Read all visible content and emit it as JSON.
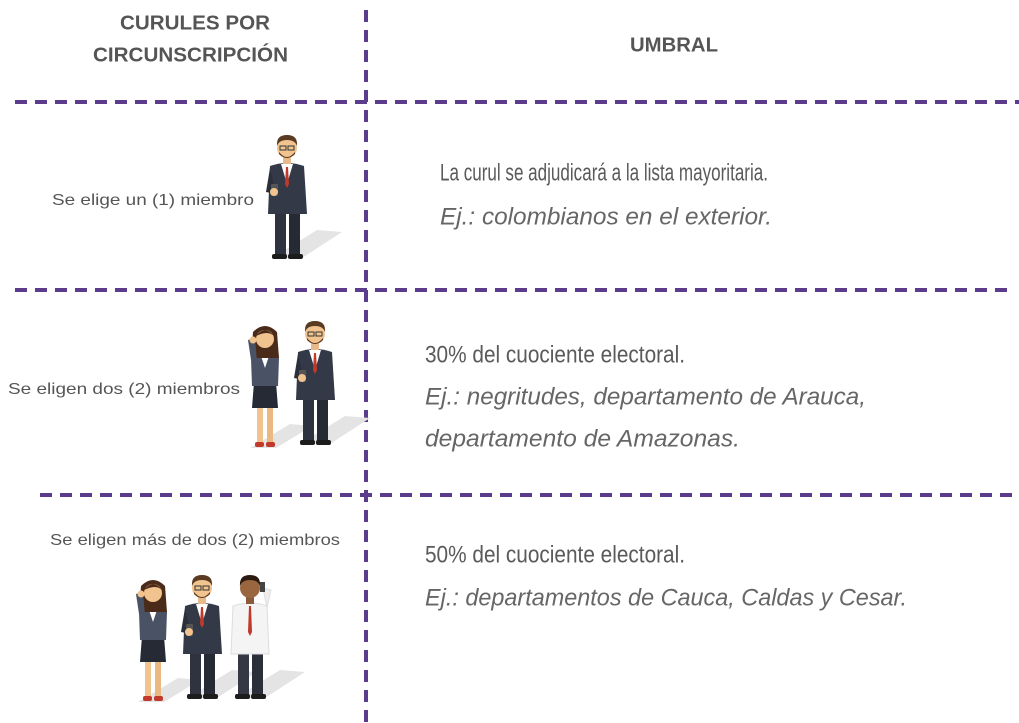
{
  "header": {
    "seats": [
      "CURULES POR",
      "CIRCUNSCRIPCIÓN"
    ],
    "threshold": "UMBRAL"
  },
  "rows": [
    {
      "seats": "Se elige un (1) miembro",
      "threshold": "La curul se adjudicará a la lista mayoritaria.",
      "example": [
        "Ej.: colombianos en el exterior."
      ]
    },
    {
      "seats": "Se eligen dos (2) miembros",
      "threshold": "30% del cuociente electoral.",
      "example": [
        "Ej.: negritudes, departamento de Arauca,",
        "departamento de Amazonas."
      ]
    },
    {
      "seats": "Se eligen más de dos (2) miembros",
      "threshold": "50% del cuociente electoral.",
      "example": [
        "Ej.: departamentos de Cauca, Caldas y Cesar."
      ]
    }
  ]
}
